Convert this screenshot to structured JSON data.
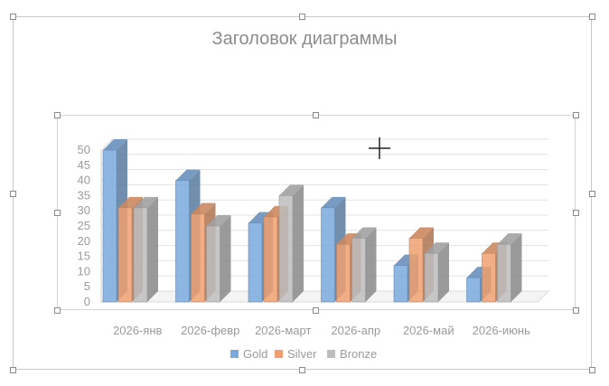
{
  "chart_data": {
    "type": "bar",
    "title": "Заголовок диаграммы",
    "categories": [
      "2026-янв",
      "2026-февр",
      "2026-март",
      "2026-апр",
      "2026-май",
      "2026-июнь"
    ],
    "series": [
      {
        "name": "Gold",
        "values": [
          50,
          40,
          26,
          31,
          12,
          8
        ],
        "color": "#7aa9dd"
      },
      {
        "name": "Silver",
        "values": [
          31,
          29,
          28,
          19,
          21,
          16
        ],
        "color": "#f0a070"
      },
      {
        "name": "Bronze",
        "values": [
          31,
          25,
          35,
          21,
          16,
          19
        ],
        "color": "#bdbdbd"
      }
    ],
    "yticks": [
      0,
      5,
      10,
      15,
      20,
      25,
      30,
      35,
      40,
      45,
      50
    ],
    "ylim": [
      0,
      50
    ],
    "grid": true,
    "legend": "bottom",
    "style": "3d-clustered-column"
  }
}
